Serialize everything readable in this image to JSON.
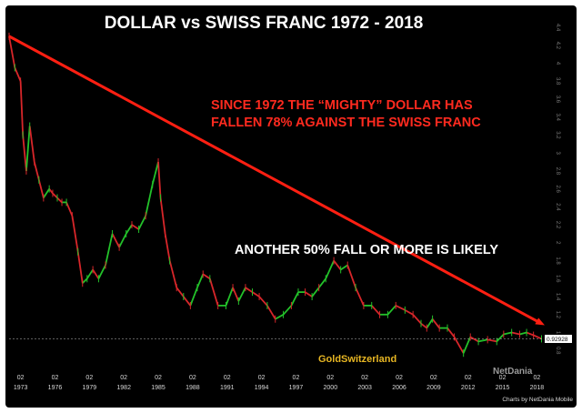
{
  "chart_data": {
    "type": "line",
    "title": "DOLLAR  vs  SWISS FRANC   1972 - 2018",
    "annotations": [
      "SINCE 1972  THE “MIGHTY” DOLLAR HAS",
      "FALLEN 78% AGAINST THE SWISS FRANC",
      "ANOTHER 50% FALL OR MORE IS LIKELY"
    ],
    "brand": "GoldSwitzerland",
    "logo": "NetDania",
    "credit": "Charts by NetDania Mobile",
    "last_price_label": "0.92928",
    "last_price": 0.92928,
    "xlim": [
      1972,
      2018.6
    ],
    "ylim": [
      0.6,
      4.4
    ],
    "x_tick_month": "02",
    "x_ticks": [
      1973,
      1976,
      1979,
      1982,
      1985,
      1988,
      1991,
      1994,
      1997,
      2000,
      2003,
      2006,
      2009,
      2012,
      2015,
      2018
    ],
    "x_tick_labels": [
      "1973",
      "1976",
      "1979",
      "1982",
      "1985",
      "1988",
      "1991",
      "1994",
      "1997",
      "2000",
      "2003",
      "2006",
      "2009",
      "2012",
      "2015",
      "2018"
    ],
    "y_ticks": [
      0.8,
      1,
      1.2,
      1.4,
      1.6,
      1.8,
      2,
      2.2,
      2.4,
      2.6,
      2.8,
      3,
      3.2,
      3.4,
      3.6,
      3.8,
      4,
      4.2,
      4.4
    ],
    "y_tick_labels": [
      "0.8",
      "1",
      "1.2",
      "1.4",
      "1.6",
      "1.8",
      "2",
      "2.2",
      "2.4",
      "2.6",
      "2.8",
      "3",
      "3.2",
      "3.4",
      "3.6",
      "3.8",
      "4",
      "4.2",
      "4.4"
    ],
    "series": [
      {
        "x": [
          1972.0,
          1972.5,
          1973.0,
          1973.2,
          1973.5,
          1973.8,
          1974.2,
          1974.6,
          1975.0,
          1975.5,
          1975.8,
          1976.2,
          1976.6,
          1977.0,
          1977.5,
          1978.0,
          1978.4,
          1978.8,
          1979.3,
          1979.8,
          1980.4,
          1981.0,
          1981.6,
          1982.2,
          1982.7,
          1983.3,
          1983.9,
          1984.5,
          1985.0,
          1985.2,
          1985.6,
          1986.0,
          1986.6,
          1987.2,
          1987.8,
          1988.4,
          1988.9,
          1989.5,
          1990.2,
          1990.9,
          1991.5,
          1992.0,
          1992.6,
          1993.2,
          1993.8,
          1994.5,
          1995.2,
          1995.9,
          1996.6,
          1997.2,
          1997.8,
          1998.4,
          1999.0,
          1999.6,
          2000.3,
          2000.9,
          2001.5,
          2002.2,
          2002.9,
          2003.6,
          2004.3,
          2005.0,
          2005.7,
          2006.5,
          2007.2,
          2007.9,
          2008.4,
          2008.9,
          2009.5,
          2010.2,
          2010.8,
          2011.6,
          2012.2,
          2012.9,
          2013.7,
          2014.5,
          2015.1,
          2015.8,
          2016.5,
          2017.1,
          2017.7,
          2018.4
        ],
        "y": [
          4.3,
          3.95,
          3.8,
          3.2,
          2.8,
          3.3,
          2.9,
          2.7,
          2.5,
          2.6,
          2.55,
          2.5,
          2.45,
          2.45,
          2.3,
          1.9,
          1.55,
          1.6,
          1.7,
          1.6,
          1.75,
          2.1,
          1.95,
          2.1,
          2.2,
          2.15,
          2.3,
          2.65,
          2.9,
          2.5,
          2.1,
          1.8,
          1.5,
          1.4,
          1.3,
          1.5,
          1.65,
          1.6,
          1.3,
          1.3,
          1.5,
          1.35,
          1.5,
          1.45,
          1.4,
          1.3,
          1.15,
          1.2,
          1.3,
          1.45,
          1.45,
          1.4,
          1.5,
          1.6,
          1.8,
          1.7,
          1.75,
          1.5,
          1.3,
          1.3,
          1.2,
          1.2,
          1.3,
          1.25,
          1.2,
          1.1,
          1.05,
          1.15,
          1.05,
          1.05,
          0.95,
          0.77,
          0.95,
          0.9,
          0.92,
          0.9,
          0.98,
          1.0,
          0.98,
          1.0,
          0.97,
          0.93
        ]
      }
    ],
    "trend_arrow": {
      "from": [
        1972.0,
        4.3
      ],
      "to": [
        2018.4,
        1.1
      ]
    },
    "grid": false,
    "legend": "none"
  }
}
